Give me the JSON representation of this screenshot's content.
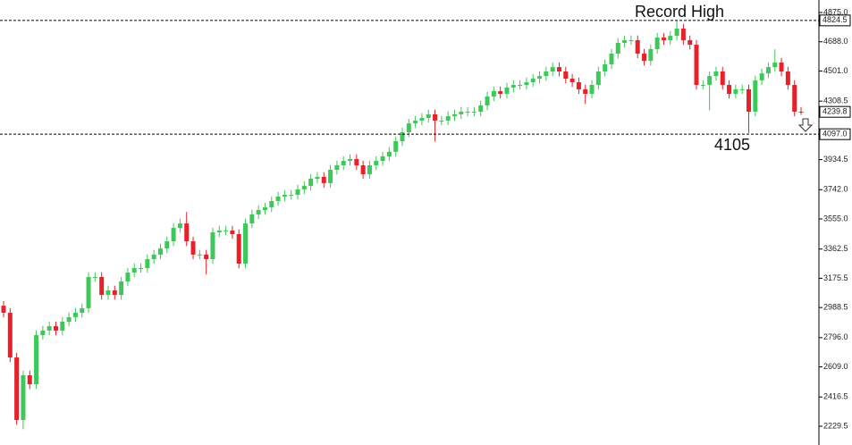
{
  "chart_data": {
    "type": "candlestick",
    "up_color": "#3ec85a",
    "down_color": "#e8202a",
    "ylim": [
      2109.4,
      4955.1
    ],
    "yticks": [
      {
        "value": 4875,
        "label": "4875.0"
      },
      {
        "value": 4688,
        "label": "4688.0"
      },
      {
        "value": 4501,
        "label": "4501.0"
      },
      {
        "value": 4308.5,
        "label": "4308.5"
      },
      {
        "value": 3934.5,
        "label": "3934.5"
      },
      {
        "value": 3742,
        "label": "3742.0"
      },
      {
        "value": 3555,
        "label": "3555.0"
      },
      {
        "value": 3362.5,
        "label": "3362.5"
      },
      {
        "value": 3175.5,
        "label": "3175.5"
      },
      {
        "value": 2988.5,
        "label": "2988.5"
      },
      {
        "value": 2796,
        "label": "2796.0"
      },
      {
        "value": 2609,
        "label": "2609.0"
      },
      {
        "value": 2416.5,
        "label": "2416.5"
      },
      {
        "value": 2229.5,
        "label": "2229.5"
      }
    ],
    "levels": [
      {
        "value": 4824.5,
        "label": "4824.5",
        "dashed": true
      },
      {
        "value": 4239.8,
        "label": "4239.8",
        "dashed": false
      },
      {
        "value": 4097,
        "label": "4097.0",
        "dashed": true
      }
    ],
    "annotations": [
      "Record High",
      "4105"
    ],
    "open": [
      3000,
      2955,
      2669,
      2269,
      2555,
      2498,
      2812,
      2841,
      2869,
      2841,
      2898,
      2927,
      2955,
      2984,
      3184,
      3184,
      3069,
      3098,
      3069,
      3155,
      3212,
      3241,
      3241,
      3298,
      3327,
      3366,
      3412,
      3498,
      3526,
      3412,
      3327,
      3327,
      3298,
      3469,
      3481,
      3481,
      3458,
      3269,
      3526,
      3584,
      3612,
      3629,
      3669,
      3698,
      3709,
      3709,
      3744,
      3766,
      3812,
      3824,
      3784,
      3869,
      3898,
      3926,
      3938,
      3898,
      3841,
      3898,
      3926,
      3955,
      3984,
      4052,
      4109,
      4166,
      4184,
      4201,
      4224,
      4184,
      4184,
      4212,
      4224,
      4241,
      4241,
      4241,
      4281,
      4338,
      4372,
      4355,
      4395,
      4412,
      4412,
      4429,
      4452,
      4469,
      4498,
      4526,
      4498,
      4452,
      4429,
      4384,
      4355,
      4412,
      4498,
      4544,
      4612,
      4681,
      4698,
      4698,
      4612,
      4566,
      4641,
      4715,
      4698,
      4726,
      4772,
      4698,
      4669,
      4412,
      4412,
      4469,
      4498,
      4412,
      4355,
      4384,
      4384,
      4241,
      4441,
      4486,
      4526,
      4555,
      4498,
      4412,
      4241
    ],
    "high": [
      3030,
      2985,
      2699,
      2585,
      2585,
      2842,
      2871,
      2899,
      2899,
      2928,
      2957,
      2985,
      3014,
      3214,
      3214,
      3214,
      3128,
      3128,
      3185,
      3242,
      3271,
      3271,
      3328,
      3357,
      3396,
      3442,
      3528,
      3556,
      3600,
      3442,
      3357,
      3357,
      3499,
      3511,
      3511,
      3511,
      3488,
      3556,
      3614,
      3642,
      3659,
      3699,
      3728,
      3739,
      3739,
      3774,
      3796,
      3842,
      3854,
      3854,
      3899,
      3928,
      3956,
      3968,
      3968,
      3928,
      3928,
      3956,
      3985,
      4014,
      4082,
      4139,
      4196,
      4214,
      4231,
      4254,
      4254,
      4214,
      4242,
      4254,
      4271,
      4271,
      4271,
      4311,
      4368,
      4402,
      4402,
      4425,
      4442,
      4442,
      4459,
      4482,
      4499,
      4528,
      4556,
      4556,
      4528,
      4482,
      4459,
      4414,
      4442,
      4528,
      4574,
      4642,
      4711,
      4728,
      4728,
      4728,
      4642,
      4671,
      4745,
      4745,
      4756,
      4824.5,
      4802,
      4728,
      4699,
      4442,
      4499,
      4528,
      4528,
      4442,
      4414,
      4414,
      4414,
      4471,
      4516,
      4556,
      4640,
      4585,
      4528,
      4442,
      4271
    ],
    "low": [
      2925,
      2639,
      2239,
      2210,
      2468,
      2468,
      2782,
      2811,
      2811,
      2811,
      2868,
      2897,
      2925,
      2954,
      3154,
      3039,
      3039,
      3039,
      3039,
      3125,
      3182,
      3211,
      3211,
      3268,
      3297,
      3336,
      3382,
      3468,
      3382,
      3297,
      3297,
      3200,
      3268,
      3439,
      3451,
      3428,
      3239,
      3239,
      3496,
      3554,
      3582,
      3599,
      3639,
      3668,
      3679,
      3679,
      3714,
      3736,
      3782,
      3754,
      3754,
      3839,
      3868,
      3896,
      3868,
      3811,
      3811,
      3868,
      3896,
      3925,
      3954,
      4022,
      4079,
      4136,
      4154,
      4171,
      4050,
      4154,
      4154,
      4182,
      4194,
      4211,
      4211,
      4211,
      4251,
      4308,
      4325,
      4325,
      4365,
      4382,
      4382,
      4399,
      4422,
      4439,
      4468,
      4468,
      4422,
      4399,
      4354,
      4290,
      4325,
      4382,
      4468,
      4514,
      4582,
      4651,
      4668,
      4582,
      4536,
      4536,
      4611,
      4668,
      4668,
      4696,
      4668,
      4639,
      4382,
      4382,
      4250,
      4439,
      4382,
      4325,
      4325,
      4354,
      4105,
      4211,
      4411,
      4456,
      4496,
      4468,
      4382,
      4211,
      4220
    ],
    "close": [
      2955,
      2669,
      2269,
      2555,
      2498,
      2812,
      2841,
      2869,
      2841,
      2898,
      2927,
      2955,
      2984,
      3184,
      3184,
      3069,
      3098,
      3069,
      3155,
      3212,
      3241,
      3241,
      3298,
      3327,
      3366,
      3412,
      3498,
      3526,
      3412,
      3327,
      3327,
      3298,
      3469,
      3481,
      3481,
      3458,
      3269,
      3526,
      3584,
      3612,
      3629,
      3669,
      3698,
      3709,
      3709,
      3744,
      3766,
      3812,
      3824,
      3784,
      3869,
      3898,
      3926,
      3938,
      3898,
      3841,
      3898,
      3926,
      3955,
      3984,
      4052,
      4109,
      4166,
      4184,
      4201,
      4224,
      4184,
      4184,
      4212,
      4224,
      4241,
      4241,
      4241,
      4281,
      4338,
      4372,
      4355,
      4395,
      4412,
      4412,
      4429,
      4452,
      4469,
      4498,
      4526,
      4498,
      4452,
      4429,
      4384,
      4355,
      4412,
      4498,
      4544,
      4612,
      4681,
      4698,
      4698,
      4612,
      4566,
      4641,
      4715,
      4698,
      4726,
      4772,
      4698,
      4669,
      4412,
      4412,
      4469,
      4498,
      4412,
      4355,
      4384,
      4384,
      4241,
      4441,
      4486,
      4526,
      4555,
      4498,
      4412,
      4241,
      4239.8
    ]
  }
}
